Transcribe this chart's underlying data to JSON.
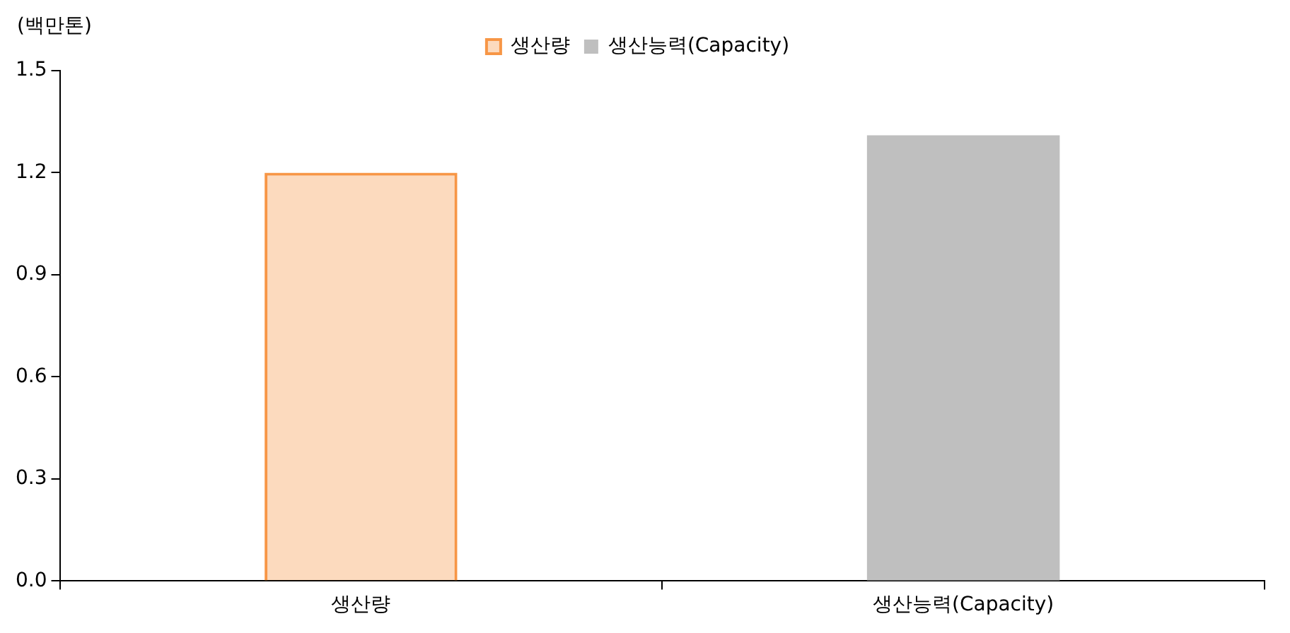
{
  "chart_data": {
    "type": "bar",
    "ylabel": "(백만톤)",
    "categories": [
      "생산량",
      "생산능력(Capacity)"
    ],
    "series": [
      {
        "name": "생산량",
        "color": "#f79646",
        "values": [
          1.2,
          null
        ]
      },
      {
        "name": "생산능력(Capacity)",
        "color": "#bfbfbf",
        "values": [
          null,
          1.31
        ]
      }
    ],
    "ylim": [
      0,
      1.5
    ],
    "yticks": [
      {
        "value": 0,
        "label": "0.0"
      },
      {
        "value": 0.3,
        "label": "0.3"
      },
      {
        "value": 0.6,
        "label": "0.6"
      },
      {
        "value": 0.9,
        "label": "0.9"
      },
      {
        "value": 1.2,
        "label": "1.2"
      },
      {
        "value": 1.5,
        "label": "1.5"
      }
    ],
    "grid": false,
    "legend": "top"
  }
}
